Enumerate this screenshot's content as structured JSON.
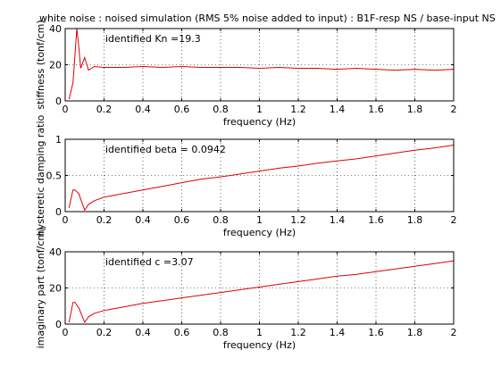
{
  "title": "white noise : noised simulation (RMS 5% noise added to input) : B1F-resp NS    / base-input NS",
  "chart_data": [
    {
      "type": "line",
      "xlabel": "frequency (Hz)",
      "ylabel": "stiffness (tonf/cm)",
      "annotation": "identified Kn =19.3",
      "xlim": [
        0,
        2
      ],
      "ylim": [
        0,
        40
      ],
      "xticks": [
        "0",
        "0.2",
        "0.4",
        "0.6",
        "0.8",
        "1",
        "1.2",
        "1.4",
        "1.6",
        "1.8",
        "2"
      ],
      "yticks": [
        "0",
        "20",
        "40"
      ],
      "grid": true,
      "color": "#e00000",
      "series": [
        {
          "x": [
            0.02,
            0.04,
            0.05,
            0.06,
            0.07,
            0.08,
            0.1,
            0.12,
            0.15,
            0.2,
            0.3,
            0.4,
            0.5,
            0.6,
            0.7,
            0.8,
            0.9,
            1.0,
            1.1,
            1.2,
            1.3,
            1.4,
            1.5,
            1.6,
            1.7,
            1.8,
            1.9,
            2.0
          ],
          "values": [
            1,
            10,
            25,
            40,
            30,
            18,
            24,
            17,
            19,
            18.5,
            18.5,
            19,
            18.5,
            19,
            18.5,
            18.5,
            18.5,
            18,
            18.5,
            18,
            18,
            17.5,
            18,
            17.5,
            17,
            17.5,
            17,
            17.5
          ]
        }
      ]
    },
    {
      "type": "line",
      "xlabel": "frequency (Hz)",
      "ylabel": "hysteretic damping ratio",
      "annotation": "identified beta = 0.0942",
      "xlim": [
        0,
        2
      ],
      "ylim": [
        0,
        1
      ],
      "xticks": [
        "0",
        "0.2",
        "0.4",
        "0.6",
        "0.8",
        "1",
        "1.2",
        "1.4",
        "1.6",
        "1.8",
        "2"
      ],
      "yticks": [
        "0",
        "0.5",
        "1"
      ],
      "grid": true,
      "color": "#e00000",
      "series": [
        {
          "x": [
            0.02,
            0.04,
            0.05,
            0.07,
            0.1,
            0.12,
            0.15,
            0.2,
            0.3,
            0.4,
            0.5,
            0.6,
            0.7,
            0.8,
            0.9,
            1.0,
            1.1,
            1.2,
            1.3,
            1.4,
            1.5,
            1.6,
            1.7,
            1.8,
            1.9,
            2.0
          ],
          "values": [
            0.05,
            0.3,
            0.3,
            0.25,
            0.02,
            0.1,
            0.15,
            0.2,
            0.25,
            0.3,
            0.35,
            0.4,
            0.45,
            0.48,
            0.52,
            0.56,
            0.6,
            0.63,
            0.67,
            0.7,
            0.73,
            0.77,
            0.81,
            0.85,
            0.88,
            0.92
          ]
        }
      ]
    },
    {
      "type": "line",
      "xlabel": "frequency (Hz)",
      "ylabel": "imaginary part (tonf/cm)",
      "annotation": "identified c =3.07",
      "xlim": [
        0,
        2
      ],
      "ylim": [
        0,
        40
      ],
      "xticks": [
        "0",
        "0.2",
        "0.4",
        "0.6",
        "0.8",
        "1",
        "1.2",
        "1.4",
        "1.6",
        "1.8",
        "2"
      ],
      "yticks": [
        "0",
        "20",
        "40"
      ],
      "grid": true,
      "color": "#e00000",
      "series": [
        {
          "x": [
            0.02,
            0.04,
            0.05,
            0.07,
            0.1,
            0.12,
            0.15,
            0.2,
            0.3,
            0.4,
            0.5,
            0.6,
            0.7,
            0.8,
            0.9,
            1.0,
            1.1,
            1.2,
            1.3,
            1.4,
            1.5,
            1.6,
            1.7,
            1.8,
            1.9,
            2.0
          ],
          "values": [
            1,
            12,
            12,
            9,
            1,
            4,
            6,
            7.5,
            9.5,
            11.5,
            13,
            14.5,
            16,
            17.5,
            19,
            20.5,
            22,
            23.5,
            25,
            26.5,
            27.5,
            29,
            30.5,
            32,
            33.5,
            35
          ]
        }
      ]
    }
  ]
}
